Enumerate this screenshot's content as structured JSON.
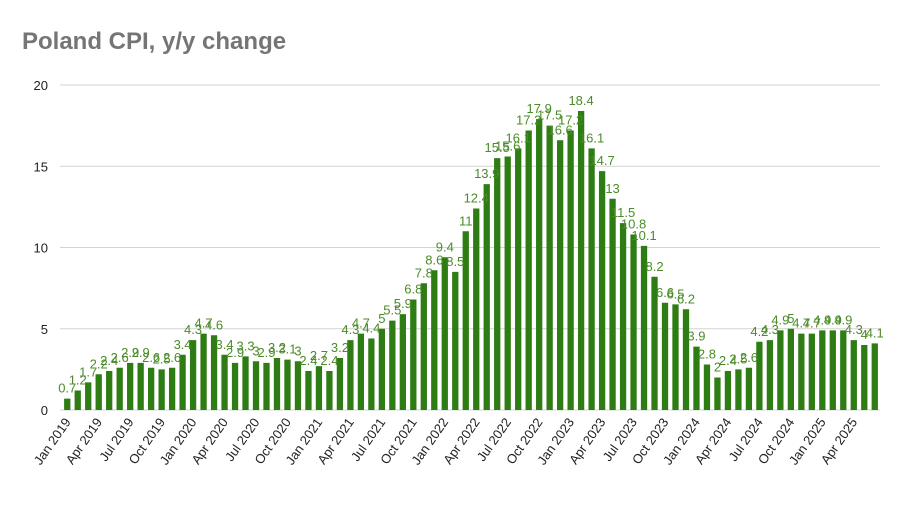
{
  "colors": {
    "bar": "#2e7d14",
    "label": "#4b8b28",
    "grid": "#d4d4d4",
    "title": "#757575"
  },
  "chart_data": {
    "type": "bar",
    "title": "Poland CPI, y/y change",
    "xlabel": "",
    "ylabel": "",
    "ylim": [
      0,
      20
    ],
    "y_ticks": [
      0,
      5,
      10,
      15,
      20
    ],
    "grid": true,
    "legend": "none",
    "x_tick_labels": [
      "Jan 2019",
      "Apr 2019",
      "Jul 2019",
      "Oct 2019",
      "Jan 2020",
      "Apr 2020",
      "Jul 2020",
      "Oct 2020",
      "Jan 2021",
      "Apr 2021",
      "Jul 2021",
      "Oct 2021",
      "Jan 2022",
      "Apr 2022",
      "Jul 2022",
      "Oct 2022",
      "Jan 2023",
      "Apr 2023",
      "Jul 2023",
      "Oct 2023",
      "Jan 2024",
      "Apr 2024",
      "Jul 2024",
      "Oct 2024",
      "Jan 2025",
      "Apr 2025"
    ],
    "categories": [
      "Jan 2019",
      "Feb 2019",
      "Mar 2019",
      "Apr 2019",
      "May 2019",
      "Jun 2019",
      "Jul 2019",
      "Aug 2019",
      "Sep 2019",
      "Oct 2019",
      "Nov 2019",
      "Dec 2019",
      "Jan 2020",
      "Feb 2020",
      "Mar 2020",
      "Apr 2020",
      "May 2020",
      "Jun 2020",
      "Jul 2020",
      "Aug 2020",
      "Sep 2020",
      "Oct 2020",
      "Nov 2020",
      "Dec 2020",
      "Jan 2021",
      "Feb 2021",
      "Mar 2021",
      "Apr 2021",
      "May 2021",
      "Jun 2021",
      "Jul 2021",
      "Aug 2021",
      "Sep 2021",
      "Oct 2021",
      "Nov 2021",
      "Dec 2021",
      "Jan 2022",
      "Feb 2022",
      "Mar 2022",
      "Apr 2022",
      "May 2022",
      "Jun 2022",
      "Jul 2022",
      "Aug 2022",
      "Sep 2022",
      "Oct 2022",
      "Nov 2022",
      "Dec 2022",
      "Jan 2023",
      "Feb 2023",
      "Mar 2023",
      "Apr 2023",
      "May 2023",
      "Jun 2023",
      "Jul 2023",
      "Aug 2023",
      "Sep 2023",
      "Oct 2023",
      "Nov 2023",
      "Dec 2023",
      "Jan 2024",
      "Feb 2024",
      "Mar 2024",
      "Apr 2024",
      "May 2024",
      "Jun 2024",
      "Jul 2024",
      "Aug 2024",
      "Sep 2024",
      "Oct 2024",
      "Nov 2024",
      "Dec 2024",
      "Jan 2025",
      "Feb 2025",
      "Mar 2025",
      "Apr 2025",
      "May 2025",
      "Jun 2025"
    ],
    "values": [
      0.7,
      1.2,
      1.7,
      2.2,
      2.4,
      2.6,
      2.9,
      2.9,
      2.6,
      2.5,
      2.6,
      3.4,
      4.3,
      4.7,
      4.6,
      3.4,
      2.9,
      3.3,
      3.0,
      2.9,
      3.2,
      3.1,
      3.0,
      2.4,
      2.7,
      2.4,
      3.2,
      4.3,
      4.7,
      4.4,
      5.0,
      5.5,
      5.9,
      6.8,
      7.8,
      8.6,
      9.4,
      8.5,
      11.0,
      12.4,
      13.9,
      15.5,
      15.6,
      16.1,
      17.2,
      17.9,
      17.5,
      16.6,
      17.2,
      18.4,
      16.1,
      14.7,
      13.0,
      11.5,
      10.8,
      10.1,
      8.2,
      6.6,
      6.5,
      6.2,
      3.9,
      2.8,
      2.0,
      2.4,
      2.5,
      2.6,
      4.2,
      4.3,
      4.9,
      5.0,
      4.7,
      4.7,
      4.9,
      4.9,
      4.9,
      4.3,
      4.0,
      4.1
    ],
    "data_labels": [
      "0.7",
      "1.2",
      "1.7",
      "2.2",
      "2.4",
      "2.6",
      "2.9",
      "2.9",
      "2.6",
      "2.5",
      "2.6",
      "3.4",
      "4.3",
      "4.7",
      "4.6",
      "3.4",
      "2.9",
      "3.3",
      "3",
      "2.9",
      "3.2",
      "3.1",
      "3",
      "2.4",
      "2.7",
      "2.4",
      "3.2",
      "4.3",
      "4.7",
      "4.4",
      "5",
      "5.5",
      "5.9",
      "6.8",
      "7.8",
      "8.6",
      "9.4",
      "8.5",
      "11",
      "12.4",
      "13.9",
      "15.5",
      "15.6",
      "16.1",
      "17.2",
      "17.9",
      "17.5",
      "16.6",
      "17.2",
      "18.4",
      "16.1",
      "14.7",
      "13",
      "11.5",
      "10.8",
      "10.1",
      "8.2",
      "6.6",
      "6.5",
      "6.2",
      "3.9",
      "2.8",
      "2",
      "2.4",
      "2.5",
      "2.6",
      "4.2",
      "4.3",
      "4.9",
      "5",
      "4.7",
      "4.7",
      "4.9",
      "4.9",
      "4.9",
      "4.3",
      "4",
      "4.1"
    ]
  }
}
